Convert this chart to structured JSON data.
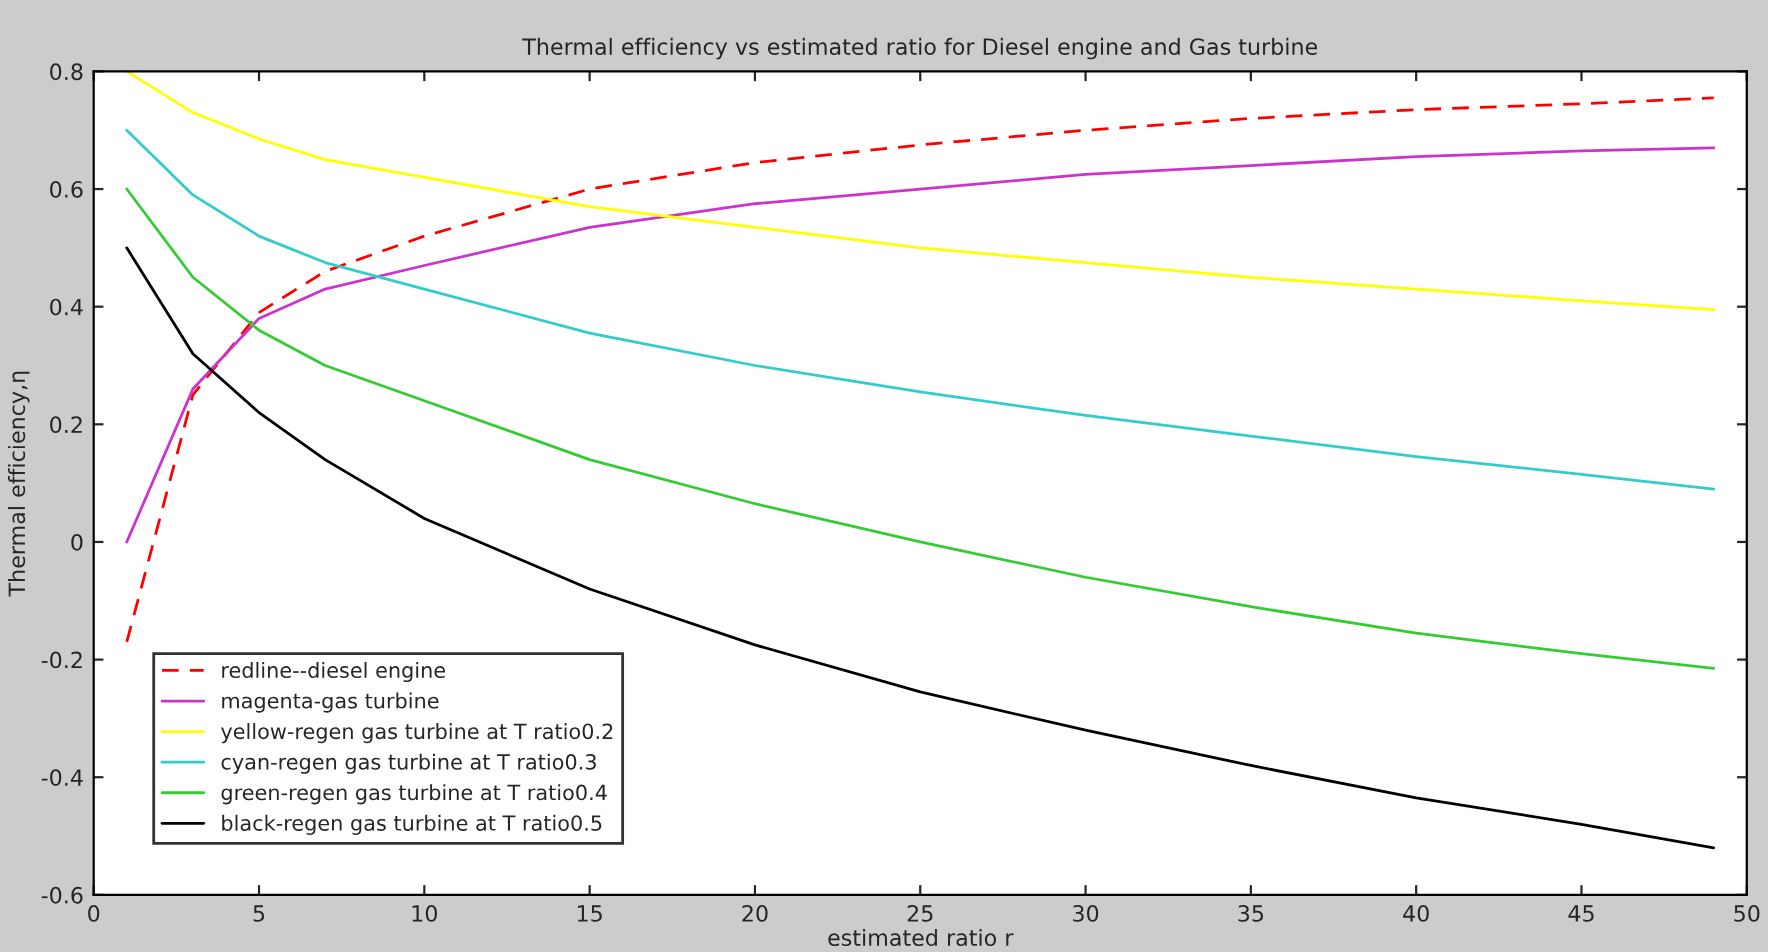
{
  "chart_data": {
    "type": "line",
    "title": "Thermal efficiency vs estimated ratio for Diesel engine and Gas turbine",
    "xlabel": "estimated ratio r",
    "ylabel": "Thermal efficiency,η",
    "xlim": [
      0,
      50
    ],
    "ylim": [
      -0.6,
      0.8
    ],
    "xticks": [
      0,
      5,
      10,
      15,
      20,
      25,
      30,
      35,
      40,
      45,
      50
    ],
    "yticks": [
      -0.6,
      -0.4,
      -0.2,
      0,
      0.2,
      0.4,
      0.6,
      0.8
    ],
    "x": [
      1,
      3,
      5,
      7,
      10,
      15,
      20,
      25,
      30,
      35,
      40,
      45,
      49
    ],
    "series": [
      {
        "name": "redline--diesel engine",
        "color": "#ff0000",
        "line_style": "dashed",
        "values": [
          -0.17,
          0.25,
          0.39,
          0.46,
          0.52,
          0.6,
          0.645,
          0.675,
          0.7,
          0.72,
          0.735,
          0.745,
          0.755
        ]
      },
      {
        "name": "magenta-gas turbine",
        "color": "#cc33cc",
        "values": [
          0.0,
          0.26,
          0.38,
          0.43,
          0.47,
          0.535,
          0.575,
          0.6,
          0.625,
          0.64,
          0.655,
          0.665,
          0.67
        ]
      },
      {
        "name": "yellow-regen gas turbine at T ratio0.2",
        "color": "#ffff00",
        "values": [
          0.8,
          0.73,
          0.685,
          0.65,
          0.62,
          0.57,
          0.535,
          0.5,
          0.475,
          0.45,
          0.43,
          0.41,
          0.395
        ]
      },
      {
        "name": "cyan-regen gas turbine at T ratio0.3",
        "color": "#33cccc",
        "values": [
          0.7,
          0.59,
          0.52,
          0.475,
          0.43,
          0.355,
          0.3,
          0.255,
          0.215,
          0.18,
          0.145,
          0.115,
          0.09
        ]
      },
      {
        "name": "green-regen gas turbine at T ratio0.4",
        "color": "#33cc33",
        "values": [
          0.6,
          0.45,
          0.36,
          0.3,
          0.24,
          0.14,
          0.065,
          0.0,
          -0.06,
          -0.11,
          -0.155,
          -0.19,
          -0.215
        ]
      },
      {
        "name": "black-regen gas turbine at T ratio0.5",
        "color": "#000000",
        "values": [
          0.5,
          0.32,
          0.22,
          0.14,
          0.04,
          -0.08,
          -0.175,
          -0.255,
          -0.32,
          -0.38,
          -0.435,
          -0.48,
          -0.52
        ]
      }
    ],
    "legend": "bottom left",
    "grid": false,
    "line_style": "solid",
    "marker": "none"
  }
}
